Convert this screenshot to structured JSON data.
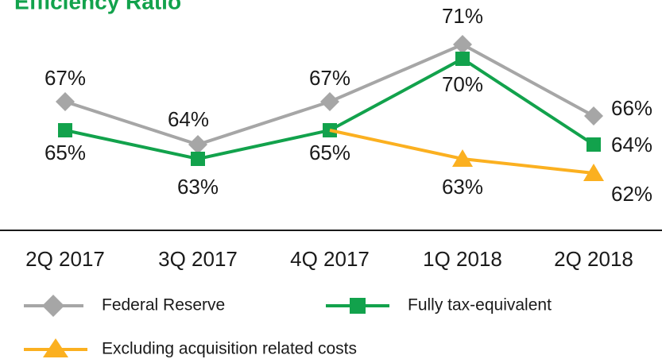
{
  "chart_data": {
    "type": "line",
    "title": "Efficiency Ratio",
    "categories": [
      "2Q 2017",
      "3Q 2017",
      "4Q 2017",
      "1Q 2018",
      "2Q 2018"
    ],
    "series": [
      {
        "name": "Federal Reserve",
        "color": "#a6a6a6",
        "marker": "diamond",
        "values": [
          67,
          64,
          67,
          71,
          66
        ],
        "value_labels": [
          "67%",
          "64%",
          "67%",
          "71%",
          "66%"
        ]
      },
      {
        "name": "Fully tax-equivalent",
        "color": "#12a24c",
        "marker": "square",
        "values": [
          65,
          63,
          65,
          70,
          64
        ],
        "value_labels": [
          "65%",
          "63%",
          "65%",
          "70%",
          "64%"
        ]
      },
      {
        "name": "Excluding acquisition related costs",
        "color": "#fbb020",
        "marker": "triangle",
        "values": [
          null,
          null,
          65,
          63,
          62
        ],
        "value_labels": [
          null,
          null,
          null,
          "63%",
          "62%"
        ]
      }
    ]
  }
}
